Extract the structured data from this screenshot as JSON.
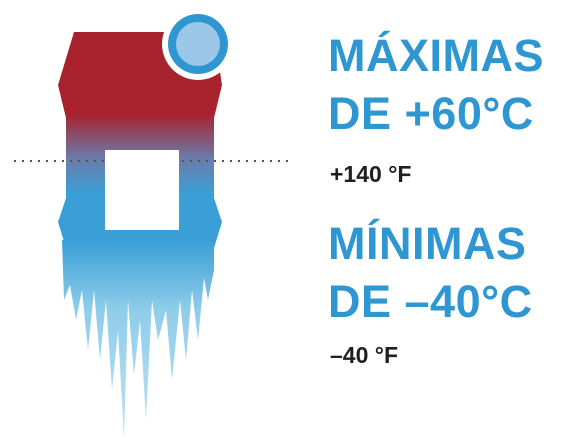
{
  "max_temp": {
    "label": "MÁXIMAS",
    "value": "DE +60°C",
    "fahrenheit": "+140 °F"
  },
  "min_temp": {
    "label": "MÍNIMAS",
    "value": "DE –40°C",
    "fahrenheit": "–40 °F"
  },
  "colors": {
    "hot": "#a8222e",
    "cold": "#3a9fd6",
    "icicle": "#8fcdea",
    "text_accent": "#2e97d2",
    "text_dark": "#1f1f1f"
  },
  "icons": [
    "thermometer-block-icon",
    "indicator-circle-icon",
    "icicles-icon",
    "dotted-divider-line"
  ]
}
